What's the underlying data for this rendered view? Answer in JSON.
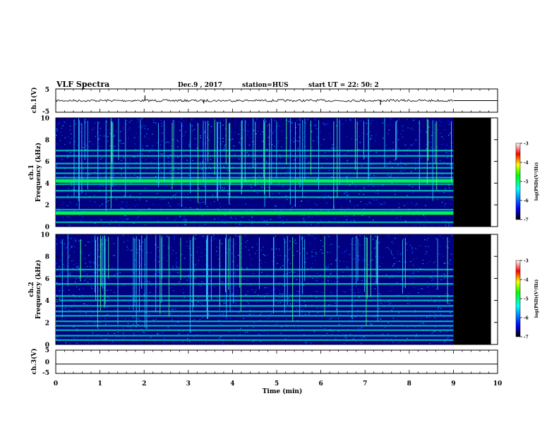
{
  "header": {
    "title": "VLF Spectra",
    "date": "Dec.9 , 2017",
    "station": "station=HUS",
    "start": "start UT = 22: 50: 2"
  },
  "chart_data": [
    {
      "type": "line",
      "name": "ch1-waveform",
      "ylabel": "ch.1(V)",
      "xlim": [
        0,
        10
      ],
      "ylim": [
        -5,
        5
      ],
      "yticks": [
        "5",
        "-5"
      ],
      "baseline": 0,
      "data_end_min": 9.0,
      "spikes": [
        {
          "x": 2.02,
          "y": 2.2
        },
        {
          "x": 3.35,
          "y": -1.2
        },
        {
          "x": 7.35,
          "y": -1.8
        }
      ]
    },
    {
      "type": "heatmap",
      "name": "ch1-spectrogram",
      "ylabel": "ch.1 Frequency (kHz)",
      "xlim": [
        0,
        10
      ],
      "ylim": [
        0,
        10
      ],
      "yticks": [
        "0",
        "2",
        "4",
        "6",
        "8",
        "10"
      ],
      "data_end_min": 9.0,
      "blank_until_min": 9.85,
      "bright_bands_khz": [
        0.4,
        1.25,
        1.55,
        2.7,
        3.3,
        3.9,
        4.2,
        4.5,
        4.9,
        5.4,
        5.8,
        6.5,
        7.0
      ]
    },
    {
      "type": "heatmap",
      "name": "ch2-spectrogram",
      "ylabel": "ch.2 Frequency (kHz)",
      "xlim": [
        0,
        10
      ],
      "ylim": [
        0,
        10
      ],
      "yticks": [
        "0",
        "2",
        "4",
        "6",
        "8",
        "10"
      ],
      "data_end_min": 9.0,
      "blank_until_min": 9.85,
      "bright_bands_khz": [
        0.4,
        0.8,
        1.3,
        1.7,
        2.1,
        2.6,
        3.0,
        3.5,
        4.0,
        4.4,
        5.5,
        6.2,
        6.8
      ]
    },
    {
      "type": "line",
      "name": "ch3-waveform",
      "ylabel": "ch.3(V)",
      "xlim": [
        0,
        10
      ],
      "ylim": [
        -5,
        5
      ],
      "yticks": [
        "5",
        "0",
        "-5"
      ],
      "baseline": -1,
      "xlabel": "Time (min)",
      "xticks": [
        "0",
        "1",
        "2",
        "3",
        "4",
        "5",
        "6",
        "7",
        "8",
        "9",
        "10"
      ]
    }
  ],
  "colorbar": {
    "label": "log(PSD)(V²/Hz)",
    "range": [
      -7,
      -3
    ],
    "ticks": [
      "-3",
      "-4",
      "-5",
      "-6",
      "-7"
    ],
    "colors": [
      "#000000",
      "#0000ff",
      "#00ffff",
      "#00ff00",
      "#ffff00",
      "#ff0000",
      "#ffffff"
    ]
  },
  "colors": {
    "background": "#000080",
    "band": "#00e0c0",
    "strong_band": "#00ff55",
    "blank": "#000000"
  }
}
